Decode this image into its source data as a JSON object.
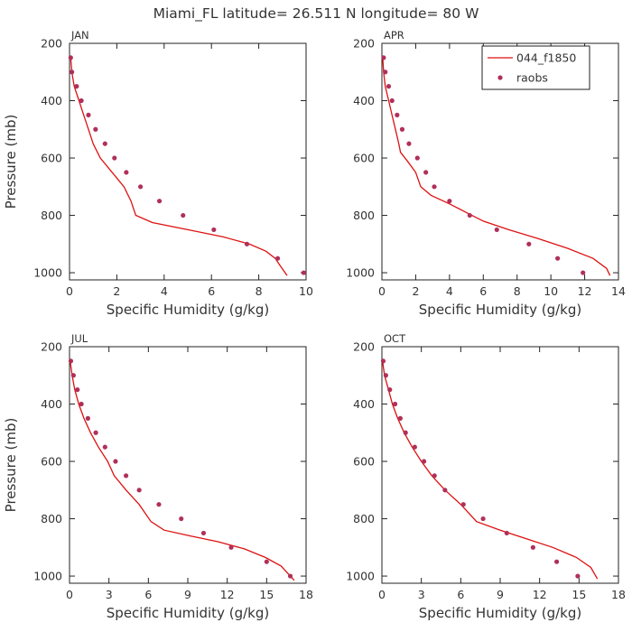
{
  "title": "Miami_FL   latitude= 26.511 N longitude= 80 W",
  "colors": {
    "model_line": "#dd1111",
    "raobs_dot": "#b0305a",
    "axis": "#222222",
    "text": "#333333"
  },
  "chart_data": [
    {
      "type": "line",
      "panel_label": "JAN",
      "xlabel": "Specific Humidity (g/kg)",
      "ylabel": "Pressure (mb)",
      "xlim": [
        0,
        10
      ],
      "ylim": [
        200,
        1025
      ],
      "y_inverted": true,
      "xticks": [
        0,
        2,
        4,
        6,
        8,
        10
      ],
      "yticks": [
        200,
        400,
        600,
        800,
        1000
      ],
      "legend": null,
      "series": [
        {
          "name": "044_f1850",
          "kind": "line",
          "points": [
            [
              0.05,
              250
            ],
            [
              0.1,
              300
            ],
            [
              0.2,
              350
            ],
            [
              0.4,
              400
            ],
            [
              0.6,
              450
            ],
            [
              0.8,
              500
            ],
            [
              1.0,
              550
            ],
            [
              1.3,
              600
            ],
            [
              1.8,
              650
            ],
            [
              2.3,
              700
            ],
            [
              2.6,
              750
            ],
            [
              2.7,
              775
            ],
            [
              2.8,
              800
            ],
            [
              3.5,
              825
            ],
            [
              5.0,
              850
            ],
            [
              6.5,
              875
            ],
            [
              7.6,
              900
            ],
            [
              8.3,
              925
            ],
            [
              8.7,
              950
            ],
            [
              8.9,
              975
            ],
            [
              9.2,
              1010
            ]
          ]
        },
        {
          "name": "raobs",
          "kind": "scatter",
          "points": [
            [
              0.05,
              250
            ],
            [
              0.1,
              300
            ],
            [
              0.3,
              350
            ],
            [
              0.5,
              400
            ],
            [
              0.8,
              450
            ],
            [
              1.1,
              500
            ],
            [
              1.5,
              550
            ],
            [
              1.9,
              600
            ],
            [
              2.4,
              650
            ],
            [
              3.0,
              700
            ],
            [
              3.8,
              750
            ],
            [
              4.8,
              800
            ],
            [
              6.1,
              850
            ],
            [
              7.5,
              900
            ],
            [
              8.8,
              950
            ],
            [
              9.9,
              1000
            ]
          ]
        }
      ]
    },
    {
      "type": "line",
      "panel_label": "APR",
      "xlabel": "Specific Humidity (g/kg)",
      "ylabel": "",
      "xlim": [
        0,
        14
      ],
      "ylim": [
        200,
        1025
      ],
      "y_inverted": true,
      "xticks": [
        0,
        2,
        4,
        6,
        8,
        10,
        12,
        14
      ],
      "yticks": [
        200,
        400,
        600,
        800,
        1000
      ],
      "legend": {
        "position": "top-right",
        "entries": [
          "044_f1850",
          "raobs"
        ]
      },
      "series": [
        {
          "name": "044_f1850",
          "kind": "line",
          "points": [
            [
              0.05,
              250
            ],
            [
              0.1,
              300
            ],
            [
              0.2,
              350
            ],
            [
              0.4,
              400
            ],
            [
              0.6,
              450
            ],
            [
              0.8,
              500
            ],
            [
              1.0,
              550
            ],
            [
              1.1,
              580
            ],
            [
              1.5,
              610
            ],
            [
              2.0,
              650
            ],
            [
              2.3,
              700
            ],
            [
              2.9,
              730
            ],
            [
              4.0,
              760
            ],
            [
              5.0,
              790
            ],
            [
              6.0,
              820
            ],
            [
              7.5,
              850
            ],
            [
              9.2,
              880
            ],
            [
              11.0,
              915
            ],
            [
              12.5,
              950
            ],
            [
              13.3,
              985
            ],
            [
              13.5,
              1010
            ]
          ]
        },
        {
          "name": "raobs",
          "kind": "scatter",
          "points": [
            [
              0.1,
              250
            ],
            [
              0.2,
              300
            ],
            [
              0.4,
              350
            ],
            [
              0.6,
              400
            ],
            [
              0.9,
              450
            ],
            [
              1.2,
              500
            ],
            [
              1.6,
              550
            ],
            [
              2.1,
              600
            ],
            [
              2.6,
              650
            ],
            [
              3.1,
              700
            ],
            [
              4.0,
              750
            ],
            [
              5.2,
              800
            ],
            [
              6.8,
              850
            ],
            [
              8.7,
              900
            ],
            [
              10.4,
              950
            ],
            [
              11.9,
              1000
            ]
          ]
        }
      ]
    },
    {
      "type": "line",
      "panel_label": "JUL",
      "xlabel": "Specific Humidity (g/kg)",
      "ylabel": "Pressure (mb)",
      "xlim": [
        0,
        18
      ],
      "ylim": [
        200,
        1025
      ],
      "y_inverted": true,
      "xticks": [
        0,
        3,
        6,
        9,
        12,
        15,
        18
      ],
      "yticks": [
        200,
        400,
        600,
        800,
        1000
      ],
      "legend": null,
      "series": [
        {
          "name": "044_f1850",
          "kind": "line",
          "points": [
            [
              0.05,
              250
            ],
            [
              0.2,
              300
            ],
            [
              0.4,
              350
            ],
            [
              0.7,
              400
            ],
            [
              1.1,
              450
            ],
            [
              1.6,
              500
            ],
            [
              2.2,
              550
            ],
            [
              2.9,
              600
            ],
            [
              3.4,
              650
            ],
            [
              4.3,
              700
            ],
            [
              5.3,
              750
            ],
            [
              6.2,
              810
            ],
            [
              7.2,
              840
            ],
            [
              9.2,
              860
            ],
            [
              11.3,
              880
            ],
            [
              13.3,
              905
            ],
            [
              14.9,
              935
            ],
            [
              16.1,
              965
            ],
            [
              16.7,
              995
            ],
            [
              17.1,
              1015
            ]
          ]
        },
        {
          "name": "raobs",
          "kind": "scatter",
          "points": [
            [
              0.1,
              250
            ],
            [
              0.3,
              300
            ],
            [
              0.6,
              350
            ],
            [
              0.9,
              400
            ],
            [
              1.4,
              450
            ],
            [
              2.0,
              500
            ],
            [
              2.7,
              550
            ],
            [
              3.5,
              600
            ],
            [
              4.3,
              650
            ],
            [
              5.3,
              700
            ],
            [
              6.8,
              750
            ],
            [
              8.5,
              800
            ],
            [
              10.2,
              850
            ],
            [
              12.3,
              900
            ],
            [
              15.0,
              950
            ],
            [
              16.8,
              1000
            ]
          ]
        }
      ]
    },
    {
      "type": "line",
      "panel_label": "OCT",
      "xlabel": "Specific Humidity (g/kg)",
      "ylabel": "",
      "xlim": [
        0,
        18
      ],
      "ylim": [
        200,
        1025
      ],
      "y_inverted": true,
      "xticks": [
        0,
        3,
        6,
        9,
        12,
        15,
        18
      ],
      "yticks": [
        200,
        400,
        600,
        800,
        1000
      ],
      "legend": null,
      "series": [
        {
          "name": "044_f1850",
          "kind": "line",
          "points": [
            [
              0.05,
              250
            ],
            [
              0.2,
              300
            ],
            [
              0.5,
              350
            ],
            [
              0.8,
              400
            ],
            [
              1.2,
              450
            ],
            [
              1.7,
              500
            ],
            [
              2.3,
              550
            ],
            [
              3.0,
              600
            ],
            [
              3.8,
              650
            ],
            [
              4.8,
              700
            ],
            [
              6.0,
              750
            ],
            [
              6.6,
              780
            ],
            [
              7.2,
              810
            ],
            [
              9.0,
              840
            ],
            [
              11.0,
              870
            ],
            [
              13.0,
              900
            ],
            [
              14.8,
              935
            ],
            [
              15.9,
              970
            ],
            [
              16.4,
              1010
            ]
          ]
        },
        {
          "name": "raobs",
          "kind": "scatter",
          "points": [
            [
              0.1,
              250
            ],
            [
              0.3,
              300
            ],
            [
              0.6,
              350
            ],
            [
              1.0,
              400
            ],
            [
              1.4,
              450
            ],
            [
              1.8,
              500
            ],
            [
              2.5,
              550
            ],
            [
              3.2,
              600
            ],
            [
              4.0,
              650
            ],
            [
              4.8,
              700
            ],
            [
              6.2,
              750
            ],
            [
              7.7,
              800
            ],
            [
              9.5,
              850
            ],
            [
              11.5,
              900
            ],
            [
              13.3,
              950
            ],
            [
              14.9,
              1000
            ]
          ]
        }
      ]
    }
  ]
}
